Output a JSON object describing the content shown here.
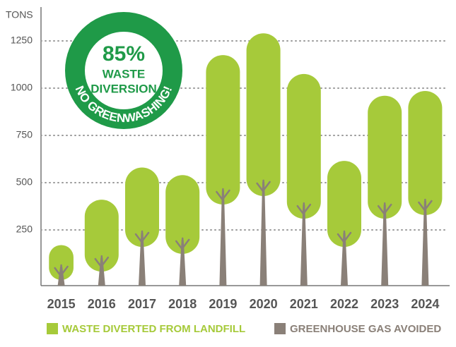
{
  "chart_data": {
    "type": "tree",
    "y_label": "TONS",
    "categories": [
      "2015",
      "2016",
      "2017",
      "2018",
      "2019",
      "2020",
      "2021",
      "2022",
      "2023",
      "2024"
    ],
    "series": [
      {
        "name": "WASTE DIVERTED FROM LANDFILL",
        "color": "#a6ca3a",
        "values": [
          170,
          410,
          580,
          540,
          1175,
          1290,
          1075,
          615,
          960,
          985
        ]
      },
      {
        "name": "GREENHOUSE GAS AVOIDED",
        "color": "#8a8078",
        "values": [
          56,
          104,
          235,
          198,
          459,
          504,
          384,
          235,
          384,
          403
        ]
      }
    ],
    "ylim": [
      0,
      1430
    ],
    "yticks": [
      250,
      500,
      750,
      1000,
      1250
    ],
    "grid": true,
    "legend": "bottom",
    "annotation": {
      "percent": "85%",
      "line1": "WASTE",
      "line2": "DIVERSION",
      "arc": "NO GREENWASHING!"
    }
  }
}
